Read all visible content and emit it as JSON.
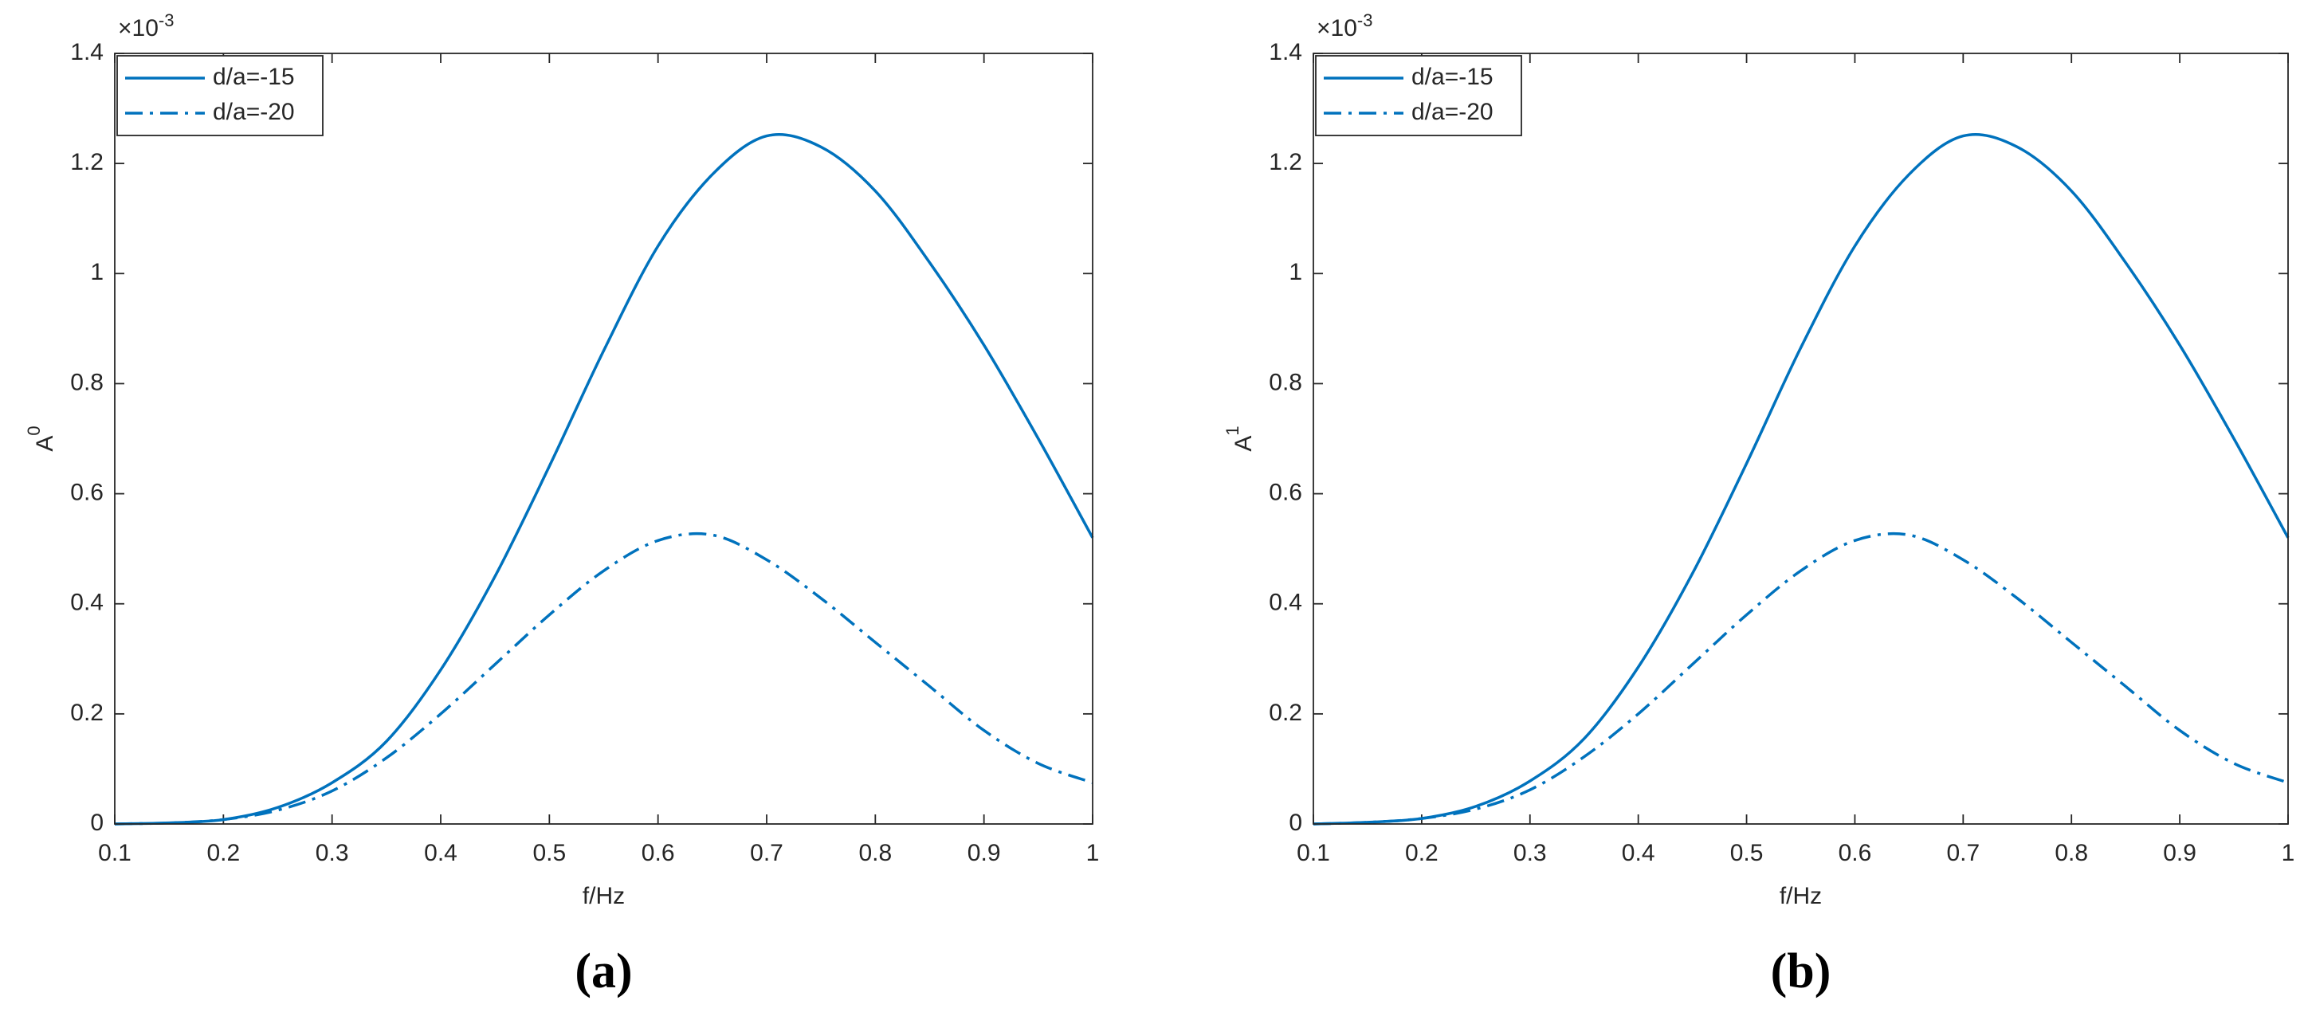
{
  "chart_data": [
    {
      "type": "line",
      "panel_label": "(a)",
      "xlabel": "f/Hz",
      "ylabel": {
        "text": "A",
        "superscript": "0"
      },
      "y_multiplier": {
        "base": "×10",
        "exponent": "-3"
      },
      "x": [
        0.1,
        0.15,
        0.2,
        0.25,
        0.3,
        0.35,
        0.4,
        0.45,
        0.5,
        0.55,
        0.6,
        0.65,
        0.7,
        0.75,
        0.8,
        0.85,
        0.9,
        0.95,
        1
      ],
      "series": [
        {
          "name": "d/a=-15",
          "color": "#0072bd",
          "style": "solid",
          "values": [
            0,
            0.002,
            0.008,
            0.03,
            0.075,
            0.15,
            0.28,
            0.45,
            0.65,
            0.86,
            1.05,
            1.18,
            1.25,
            1.23,
            1.15,
            1.02,
            0.87,
            0.7,
            0.52
          ]
        },
        {
          "name": "d/a=-20",
          "color": "#0072bd",
          "style": "dashdot",
          "values": [
            0,
            0.002,
            0.008,
            0.025,
            0.06,
            0.12,
            0.2,
            0.29,
            0.38,
            0.46,
            0.515,
            0.525,
            0.48,
            0.41,
            0.33,
            0.25,
            0.17,
            0.11,
            0.075
          ]
        }
      ],
      "xlim": [
        0.1,
        1
      ],
      "ylim": [
        0,
        1.4
      ],
      "xticks": [
        0.1,
        0.2,
        0.3,
        0.4,
        0.5,
        0.6,
        0.7,
        0.8,
        0.9,
        1
      ],
      "yticks": [
        0,
        0.2,
        0.4,
        0.6,
        0.8,
        1,
        1.2,
        1.4
      ],
      "legend": "upper left",
      "grid": false
    },
    {
      "type": "line",
      "panel_label": "(b)",
      "xlabel": "f/Hz",
      "ylabel": {
        "text": "A",
        "superscript": "1"
      },
      "y_multiplier": {
        "base": "×10",
        "exponent": "-3"
      },
      "x": [
        0.1,
        0.15,
        0.2,
        0.25,
        0.3,
        0.35,
        0.4,
        0.45,
        0.5,
        0.55,
        0.6,
        0.65,
        0.7,
        0.75,
        0.8,
        0.85,
        0.9,
        0.95,
        1
      ],
      "series": [
        {
          "name": "d/a=-15",
          "color": "#0072bd",
          "style": "solid",
          "values": [
            0,
            0.003,
            0.01,
            0.032,
            0.078,
            0.155,
            0.285,
            0.455,
            0.655,
            0.865,
            1.05,
            1.18,
            1.25,
            1.23,
            1.15,
            1.02,
            0.87,
            0.7,
            0.52
          ]
        },
        {
          "name": "d/a=-20",
          "color": "#0072bd",
          "style": "dashdot",
          "values": [
            0,
            0.003,
            0.01,
            0.027,
            0.062,
            0.122,
            0.2,
            0.29,
            0.38,
            0.46,
            0.515,
            0.525,
            0.48,
            0.41,
            0.33,
            0.25,
            0.17,
            0.11,
            0.075
          ]
        }
      ],
      "xlim": [
        0.1,
        1
      ],
      "ylim": [
        0,
        1.4
      ],
      "xticks": [
        0.1,
        0.2,
        0.3,
        0.4,
        0.5,
        0.6,
        0.7,
        0.8,
        0.9,
        1
      ],
      "yticks": [
        0,
        0.2,
        0.4,
        0.6,
        0.8,
        1,
        1.2,
        1.4
      ],
      "legend": "upper left",
      "grid": false
    }
  ]
}
